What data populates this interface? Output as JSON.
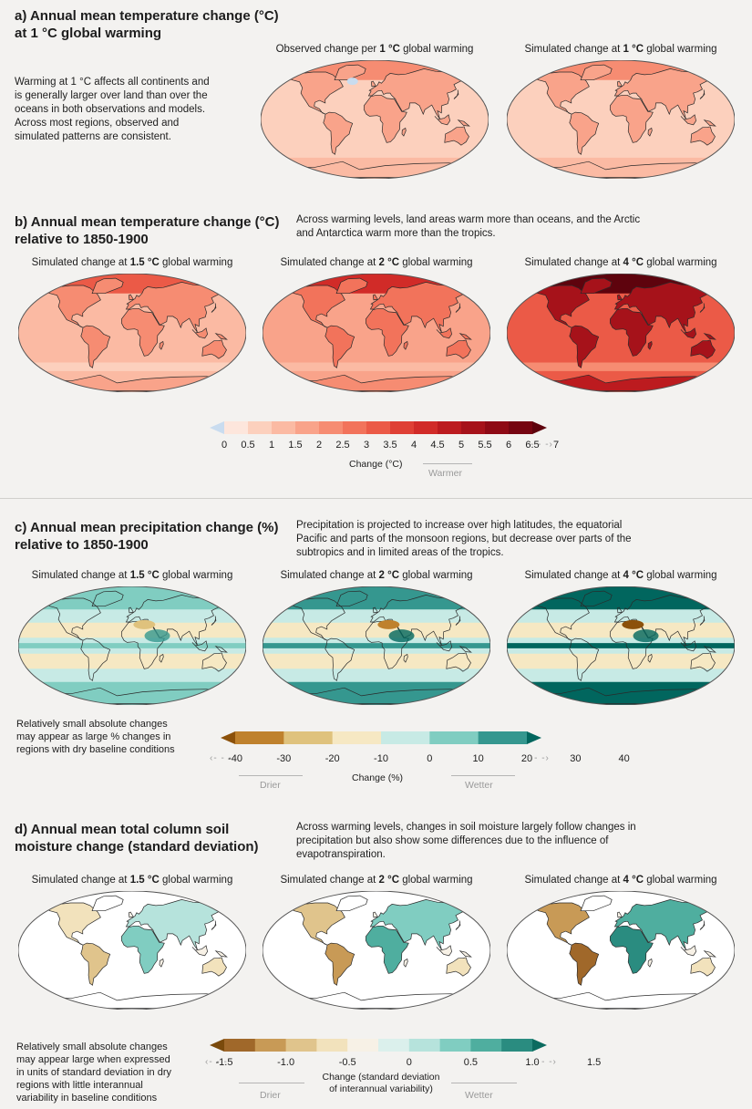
{
  "panel_a": {
    "title_line1": "a) Annual mean temperature change (°C)",
    "title_line2": "at 1 °C global warming",
    "description": [
      "Warming at 1 °C affects all continents and",
      "is generally larger over land than over the",
      "oceans in both observations and models.",
      "Across most regions, observed and",
      "simulated patterns are consistent."
    ],
    "map1_label_pre": "Observed change per ",
    "map1_label_bold": "1 °C",
    "map1_label_post": " global warming",
    "map2_label_pre": "Simulated change at ",
    "map2_label_bold": "1 °C",
    "map2_label_post": " global warming"
  },
  "panel_b": {
    "title_line1": "b) Annual mean temperature change (°C)",
    "title_line2": "relative to 1850-1900",
    "description": [
      "Across warming levels, land areas warm more than oceans, and the Arctic",
      "and Antarctica warm more than the tropics."
    ],
    "maps": [
      {
        "pre": "Simulated change at ",
        "bold": "1.5 °C",
        "post": " global warming"
      },
      {
        "pre": "Simulated change at ",
        "bold": "2 °C",
        "post": " global warming"
      },
      {
        "pre": "Simulated change at ",
        "bold": "4 °C",
        "post": " global warming"
      }
    ],
    "colorbar_ticks": [
      "0",
      "0.5",
      "1",
      "1.5",
      "2",
      "2.5",
      "3",
      "3.5",
      "4",
      "4.5",
      "5",
      "5.5",
      "6",
      "6.5",
      "7"
    ],
    "colorbar_label": "Change (°C)",
    "warmer_label": "Warmer"
  },
  "panel_c": {
    "title_line1": "c) Annual mean precipitation change (%)",
    "title_line2": "relative to 1850-1900",
    "description": [
      "Precipitation is projected to increase over high latitudes, the equatorial",
      "Pacific and parts of the monsoon regions, but decrease over parts of the",
      "subtropics and in limited areas of the tropics."
    ],
    "maps": [
      {
        "pre": "Simulated change at ",
        "bold": "1.5 °C",
        "post": " global warming"
      },
      {
        "pre": "Simulated change at ",
        "bold": "2 °C",
        "post": " global warming"
      },
      {
        "pre": "Simulated change at ",
        "bold": "4 °C",
        "post": " global warming"
      }
    ],
    "note": [
      "Relatively small absolute changes",
      "may appear as large % changes in",
      "regions with dry baseline conditions"
    ],
    "colorbar_ticks": [
      "-40",
      "-30",
      "-20",
      "-10",
      "0",
      "10",
      "20",
      "30",
      "40"
    ],
    "colorbar_label": "Change (%)",
    "drier_label": "Drier",
    "wetter_label": "Wetter"
  },
  "panel_d": {
    "title_line1": "d) Annual mean total column soil",
    "title_line2": "moisture change (standard deviation)",
    "description": [
      "Across warming levels, changes in soil moisture largely follow changes in",
      "precipitation but also show some differences due to the influence of",
      "evapotranspiration."
    ],
    "maps": [
      {
        "pre": "Simulated change at ",
        "bold": "1.5 °C",
        "post": " global warming"
      },
      {
        "pre": "Simulated change at ",
        "bold": "2 °C",
        "post": " global warming"
      },
      {
        "pre": "Simulated change at ",
        "bold": "4 °C",
        "post": " global warming"
      }
    ],
    "note": [
      "Relatively small absolute changes",
      "may appear large when expressed",
      "in units of standard deviation in dry",
      "regions with little interannual",
      "variability in baseline conditions"
    ],
    "colorbar_ticks": [
      "-1.5",
      "-1.0",
      "-0.5",
      "0",
      "0.5",
      "1.0",
      "1.5"
    ],
    "colorbar_label_line1": "Change (standard deviation",
    "colorbar_label_line2": "of interannual variability)",
    "drier_label": "Drier",
    "wetter_label": "Wetter"
  },
  "colors": {
    "temp_scale": [
      "#c9dcef",
      "#fde6dc",
      "#fcd0bd",
      "#fbbaa3",
      "#f9a38a",
      "#f68c72",
      "#f2735b",
      "#eb5a47",
      "#df4035",
      "#d12b28",
      "#bc1b1f",
      "#a6121a",
      "#8e0a15",
      "#760511",
      "#5e030d"
    ],
    "precip_scale": [
      "#8c510a",
      "#bf812d",
      "#dfc27d",
      "#f6e8c3",
      "#c7eae5",
      "#80cdc1",
      "#35978f",
      "#01665e"
    ],
    "soil_scale": [
      "#7a4a0c",
      "#a0682a",
      "#c89a56",
      "#e0c48c",
      "#f2e2bc",
      "#f7f1e6",
      "#dbf0ec",
      "#b6e3dc",
      "#80cdc1",
      "#4fae9f",
      "#2a8c80",
      "#0b6b5f"
    ]
  }
}
